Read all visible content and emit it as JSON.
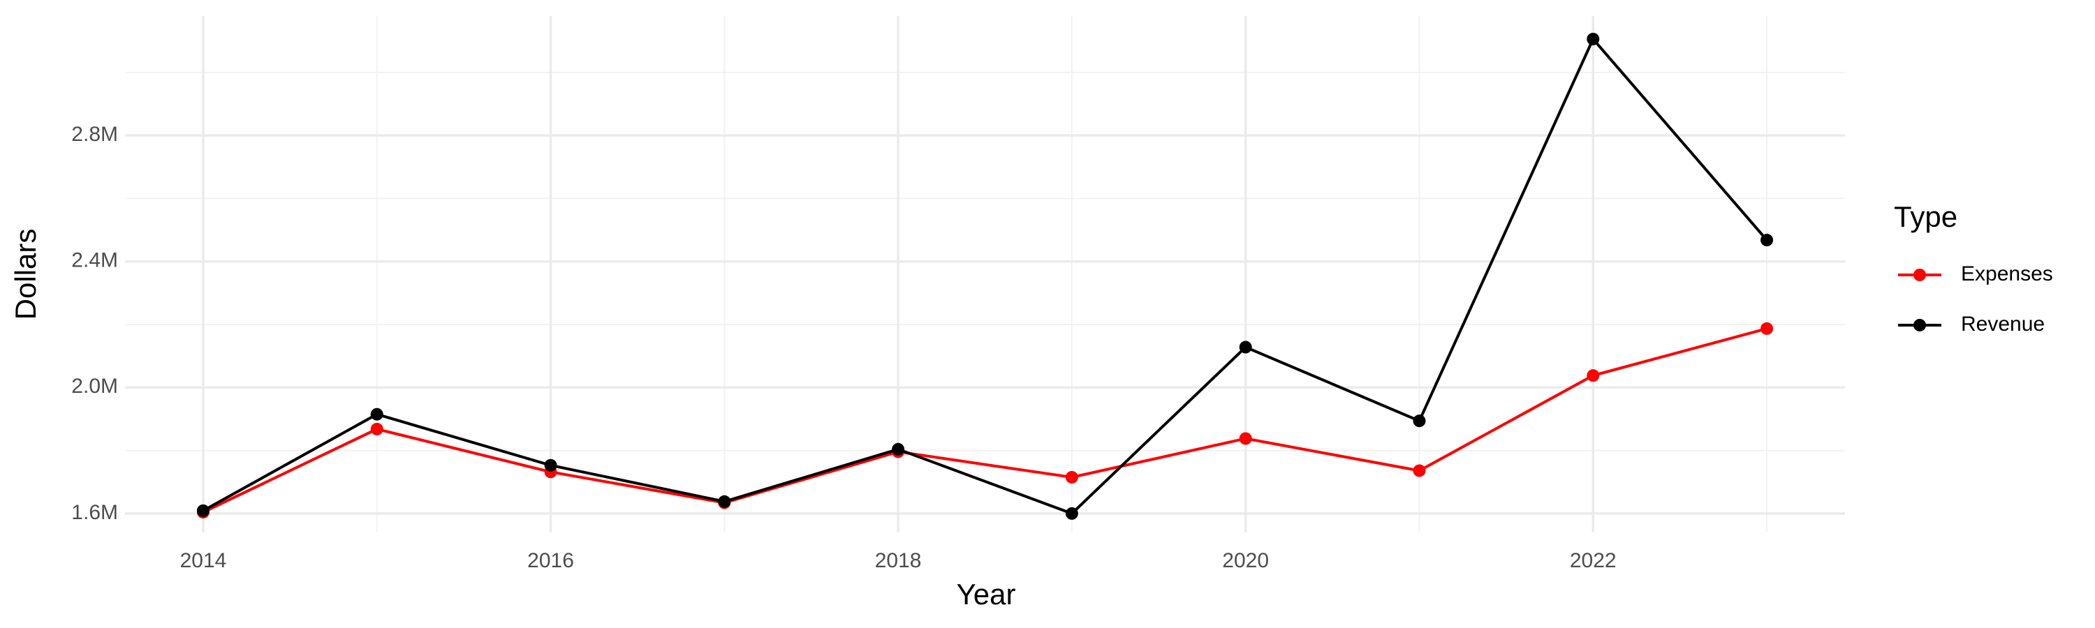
{
  "chart_data": {
    "type": "line",
    "x_label": "Year",
    "y_label": "Dollars",
    "legend_title": "Type",
    "legend": "right",
    "grid": true,
    "x": [
      2014,
      2015,
      2016,
      2017,
      2018,
      2019,
      2020,
      2021,
      2022,
      2023
    ],
    "series": [
      {
        "name": "Expenses",
        "color": "#ff0000",
        "values": [
          1604000,
          1868000,
          1732000,
          1634000,
          1796000,
          1715000,
          1838000,
          1736000,
          2038000,
          2187000
        ]
      },
      {
        "name": "Revenue",
        "color": "#000000",
        "values": [
          1609000,
          1915000,
          1753000,
          1638000,
          1804000,
          1600000,
          2128000,
          1894000,
          3106000,
          2468000
        ]
      }
    ],
    "xlim": [
      2013.55,
      2023.45
    ],
    "xticks": [
      2014,
      2016,
      2018,
      2020,
      2022
    ],
    "ylim": [
      1540000,
      3179000
    ],
    "yticks": [
      {
        "value": 1600000,
        "label": "1.6M"
      },
      {
        "value": 2000000,
        "label": "2.0M"
      },
      {
        "value": 2400000,
        "label": "2.4M"
      },
      {
        "value": 2800000,
        "label": "2.8M"
      }
    ]
  }
}
